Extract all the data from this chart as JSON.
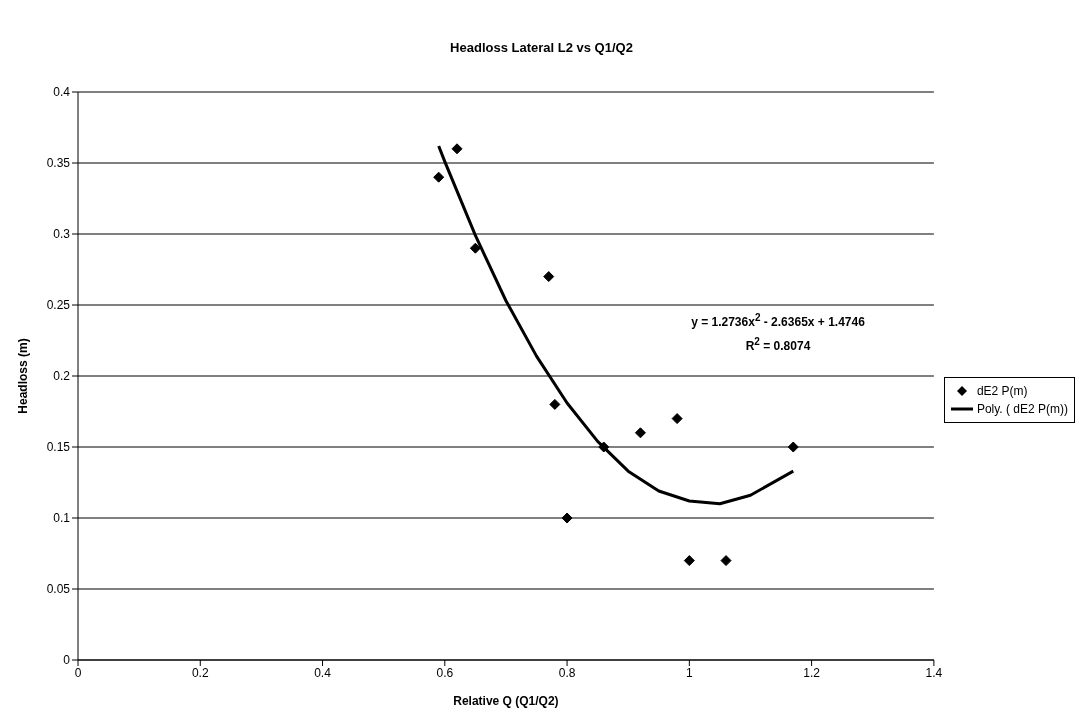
{
  "chart_data": {
    "type": "scatter",
    "title": "Headloss Lateral L2 vs Q1/Q2",
    "xlabel": "Relative Q (Q1/Q2)",
    "ylabel": "Headloss (m)",
    "xlim": [
      0,
      1.4
    ],
    "xticks": [
      0,
      0.2,
      0.4,
      0.6,
      0.8,
      1,
      1.2,
      1.4
    ],
    "ylim": [
      0,
      0.4
    ],
    "yticks": [
      0,
      0.05,
      0.1,
      0.15,
      0.2,
      0.25,
      0.3,
      0.35,
      0.4
    ],
    "grid": "y",
    "legend": "right",
    "series": [
      {
        "name": "dE2 P(m)",
        "marker": "diamond",
        "color": "#000000",
        "x": [
          0.59,
          0.62,
          0.65,
          0.77,
          0.78,
          0.8,
          0.86,
          0.92,
          0.98,
          1.0,
          1.06,
          1.17
        ],
        "values": [
          0.34,
          0.36,
          0.29,
          0.27,
          0.18,
          0.1,
          0.15,
          0.16,
          0.17,
          0.07,
          0.07,
          0.15
        ]
      },
      {
        "name": "Poly. ( dE2 P(m))",
        "type": "line",
        "marker": "none",
        "line_style": "solid",
        "color": "#000000",
        "x": [
          0.59,
          0.6,
          0.65,
          0.7,
          0.75,
          0.8,
          0.85,
          0.9,
          0.95,
          1.0,
          1.05,
          1.1,
          1.17
        ],
        "values": [
          0.362,
          0.351,
          0.299,
          0.253,
          0.214,
          0.181,
          0.154,
          0.133,
          0.119,
          0.112,
          0.11,
          0.116,
          0.133
        ]
      }
    ],
    "annotations": [
      "y = 1.2736x$^{2}$ - 2.6365x + 1.4746",
      "R$^{2}$ = 0.8074"
    ]
  }
}
